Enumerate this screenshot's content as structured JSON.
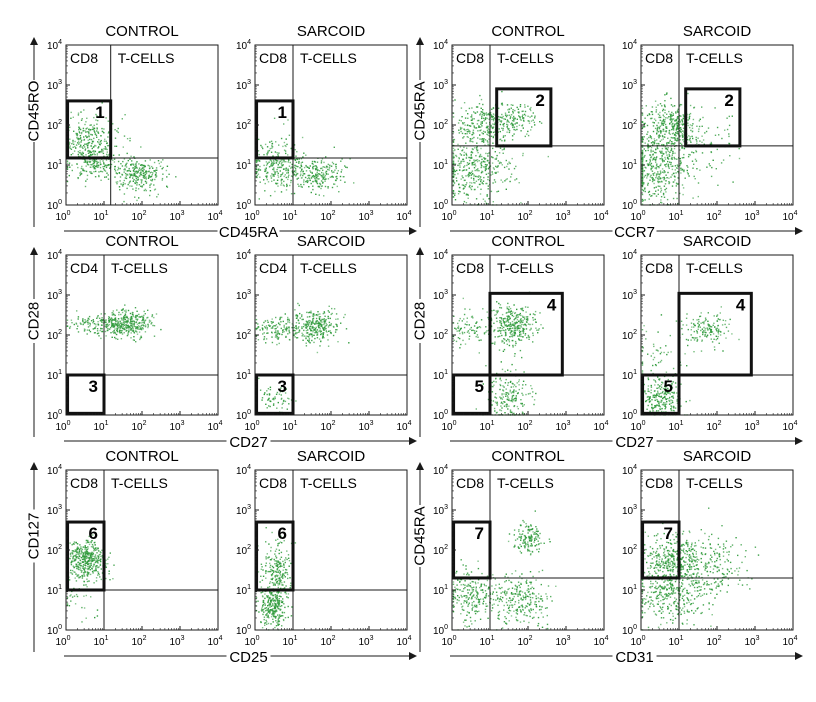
{
  "figure": {
    "chart_data": [
      {
        "type": "scatter",
        "panel_label": "1",
        "figure_row": 1,
        "x_axis_label": "CD45RA",
        "y_axis_label": "CD45RO",
        "scale": "log",
        "xlim": [
          1,
          10000
        ],
        "ylim": [
          1,
          10000
        ],
        "tick_labels": [
          "10",
          "10",
          "10",
          "10",
          "10"
        ],
        "tick_exponents": [
          "0",
          "1",
          "2",
          "3",
          "4"
        ],
        "panels": [
          {
            "title": "CONTROL",
            "subset_label": "CD8",
            "cells_label": "T-CELLS",
            "quadrant_divider": {
              "x": 15,
              "y": 15
            },
            "gate": {
              "label": "1",
              "x": [
                1.1,
                15
              ],
              "y": [
                15,
                400
              ]
            },
            "clusters": [
              {
                "x": 3,
                "y": 40,
                "spread_x": 0.45,
                "spread_y": 0.35,
                "count": 320
              },
              {
                "x": 5,
                "y": 12,
                "spread_x": 0.35,
                "spread_y": 0.2,
                "count": 160
              },
              {
                "x": 80,
                "y": 6,
                "spread_x": 0.35,
                "spread_y": 0.2,
                "count": 260
              }
            ]
          },
          {
            "title": "SARCOID",
            "subset_label": "CD8",
            "cells_label": "T-CELLS",
            "quadrant_divider": {
              "x": 10,
              "y": 15
            },
            "gate": {
              "label": "1",
              "x": [
                1.1,
                10
              ],
              "y": [
                15,
                400
              ]
            },
            "clusters": [
              {
                "x": 3,
                "y": 25,
                "spread_x": 0.35,
                "spread_y": 0.3,
                "count": 70
              },
              {
                "x": 4,
                "y": 8,
                "spread_x": 0.4,
                "spread_y": 0.25,
                "count": 200
              },
              {
                "x": 40,
                "y": 6,
                "spread_x": 0.35,
                "spread_y": 0.2,
                "count": 240
              }
            ]
          }
        ]
      },
      {
        "type": "scatter",
        "panel_label": "2",
        "figure_row": 1,
        "x_axis_label": "CCR7",
        "y_axis_label": "CD45RA",
        "scale": "log",
        "xlim": [
          1,
          10000
        ],
        "ylim": [
          1,
          10000
        ],
        "tick_labels": [
          "10",
          "10",
          "10",
          "10",
          "10"
        ],
        "tick_exponents": [
          "0",
          "1",
          "2",
          "3",
          "4"
        ],
        "panels": [
          {
            "title": "CONTROL",
            "subset_label": "CD8",
            "cells_label": "T-CELLS",
            "quadrant_divider": {
              "x": 10,
              "y": 30
            },
            "gate": {
              "label": "2",
              "x": [
                15,
                400
              ],
              "y": [
                30,
                800
              ]
            },
            "clusters": [
              {
                "x": 8,
                "y": 100,
                "spread_x": 0.4,
                "spread_y": 0.3,
                "count": 260
              },
              {
                "x": 40,
                "y": 150,
                "spread_x": 0.3,
                "spread_y": 0.2,
                "count": 120
              },
              {
                "x": 4,
                "y": 8,
                "spread_x": 0.5,
                "spread_y": 0.4,
                "count": 380
              }
            ]
          },
          {
            "title": "SARCOID",
            "subset_label": "CD8",
            "cells_label": "T-CELLS",
            "quadrant_divider": {
              "x": 10,
              "y": 30
            },
            "gate": {
              "label": "2",
              "x": [
                15,
                400
              ],
              "y": [
                30,
                800
              ]
            },
            "clusters": [
              {
                "x": 6,
                "y": 100,
                "spread_x": 0.35,
                "spread_y": 0.3,
                "count": 320
              },
              {
                "x": 3,
                "y": 10,
                "spread_x": 0.45,
                "spread_y": 0.45,
                "count": 460
              },
              {
                "x": 60,
                "y": 30,
                "spread_x": 0.4,
                "spread_y": 0.4,
                "count": 60
              }
            ]
          }
        ]
      },
      {
        "type": "scatter",
        "panel_label": "3",
        "figure_row": 2,
        "x_axis_label": "CD27",
        "y_axis_label": "CD28",
        "scale": "log",
        "xlim": [
          1,
          10000
        ],
        "ylim": [
          1,
          10000
        ],
        "tick_labels": [
          "10",
          "10",
          "10",
          "10",
          "10"
        ],
        "tick_exponents": [
          "0",
          "1",
          "2",
          "3",
          "4"
        ],
        "panels": [
          {
            "title": "CONTROL",
            "subset_label": "CD4",
            "cells_label": "T-CELLS",
            "quadrant_divider": {
              "x": 10,
              "y": 10
            },
            "gate": {
              "label": "3",
              "x": [
                1.1,
                10
              ],
              "y": [
                1.1,
                10
              ]
            },
            "clusters": [
              {
                "x": 40,
                "y": 200,
                "spread_x": 0.3,
                "spread_y": 0.18,
                "count": 340
              },
              {
                "x": 5,
                "y": 180,
                "spread_x": 0.35,
                "spread_y": 0.12,
                "count": 120
              }
            ]
          },
          {
            "title": "SARCOID",
            "subset_label": "CD4",
            "cells_label": "T-CELLS",
            "quadrant_divider": {
              "x": 10,
              "y": 10
            },
            "gate": {
              "label": "3",
              "x": [
                1.1,
                10
              ],
              "y": [
                1.1,
                10
              ]
            },
            "clusters": [
              {
                "x": 40,
                "y": 180,
                "spread_x": 0.3,
                "spread_y": 0.2,
                "count": 280
              },
              {
                "x": 4,
                "y": 150,
                "spread_x": 0.4,
                "spread_y": 0.15,
                "count": 150
              },
              {
                "x": 3,
                "y": 2.5,
                "spread_x": 0.2,
                "spread_y": 0.15,
                "count": 60
              }
            ]
          }
        ]
      },
      {
        "type": "scatter",
        "panel_label": "4 / 5",
        "figure_row": 2,
        "x_axis_label": "CD27",
        "y_axis_label": "CD28",
        "scale": "log",
        "xlim": [
          1,
          10000
        ],
        "ylim": [
          1,
          10000
        ],
        "tick_labels": [
          "10",
          "10",
          "10",
          "10",
          "10"
        ],
        "tick_exponents": [
          "0",
          "1",
          "2",
          "3",
          "4"
        ],
        "panels": [
          {
            "title": "CONTROL",
            "subset_label": "CD8",
            "cells_label": "T-CELLS",
            "quadrant_divider": {
              "x": 10,
              "y": 10
            },
            "gates": [
              {
                "label": "4",
                "x": [
                  10,
                  800
                ],
                "y": [
                  10,
                  1100
                ]
              },
              {
                "label": "5",
                "x": [
                  1.1,
                  10
                ],
                "y": [
                  1.1,
                  10
                ]
              }
            ],
            "clusters": [
              {
                "x": 40,
                "y": 180,
                "spread_x": 0.3,
                "spread_y": 0.25,
                "count": 320
              },
              {
                "x": 3,
                "y": 150,
                "spread_x": 0.35,
                "spread_y": 0.2,
                "count": 90
              },
              {
                "x": 30,
                "y": 3,
                "spread_x": 0.3,
                "spread_y": 0.35,
                "count": 200
              }
            ]
          },
          {
            "title": "SARCOID",
            "subset_label": "CD8",
            "cells_label": "T-CELLS",
            "quadrant_divider": {
              "x": 10,
              "y": 10
            },
            "gates": [
              {
                "label": "4",
                "x": [
                  10,
                  800
                ],
                "y": [
                  10,
                  1100
                ]
              },
              {
                "label": "5",
                "x": [
                  1.1,
                  10
                ],
                "y": [
                  1.1,
                  10
                ]
              }
            ],
            "clusters": [
              {
                "x": 50,
                "y": 150,
                "spread_x": 0.3,
                "spread_y": 0.2,
                "count": 150
              },
              {
                "x": 3,
                "y": 2.5,
                "spread_x": 0.28,
                "spread_y": 0.25,
                "count": 240
              },
              {
                "x": 3,
                "y": 30,
                "spread_x": 0.4,
                "spread_y": 0.4,
                "count": 60
              }
            ]
          }
        ]
      },
      {
        "type": "scatter",
        "panel_label": "6",
        "figure_row": 3,
        "x_axis_label": "CD25",
        "y_axis_label": "CD127",
        "scale": "log",
        "xlim": [
          1,
          10000
        ],
        "ylim": [
          1,
          10000
        ],
        "tick_labels": [
          "10",
          "10",
          "10",
          "10",
          "10"
        ],
        "tick_exponents": [
          "0",
          "1",
          "2",
          "3",
          "4"
        ],
        "panels": [
          {
            "title": "CONTROL",
            "subset_label": "CD8",
            "cells_label": "T-CELLS",
            "quadrant_divider": {
              "x": 10,
              "y": 10
            },
            "gate": {
              "label": "6",
              "x": [
                1.1,
                10
              ],
              "y": [
                10,
                500
              ]
            },
            "clusters": [
              {
                "x": 3.5,
                "y": 60,
                "spread_x": 0.25,
                "spread_y": 0.25,
                "count": 420
              },
              {
                "x": 3,
                "y": 5,
                "spread_x": 0.3,
                "spread_y": 0.3,
                "count": 30
              }
            ]
          },
          {
            "title": "SARCOID",
            "subset_label": "CD8",
            "cells_label": "T-CELLS",
            "quadrant_divider": {
              "x": 10,
              "y": 10
            },
            "gate": {
              "label": "6",
              "x": [
                1.1,
                10
              ],
              "y": [
                10,
                500
              ]
            },
            "clusters": [
              {
                "x": 3.5,
                "y": 30,
                "spread_x": 0.2,
                "spread_y": 0.35,
                "count": 220
              },
              {
                "x": 3,
                "y": 4,
                "spread_x": 0.18,
                "spread_y": 0.25,
                "count": 260
              }
            ]
          }
        ]
      },
      {
        "type": "scatter",
        "panel_label": "7",
        "figure_row": 3,
        "x_axis_label": "CD31",
        "y_axis_label": "CD45RA",
        "scale": "log",
        "xlim": [
          1,
          10000
        ],
        "ylim": [
          1,
          10000
        ],
        "tick_labels": [
          "10",
          "10",
          "10",
          "10",
          "10"
        ],
        "tick_exponents": [
          "0",
          "1",
          "2",
          "3",
          "4"
        ],
        "panels": [
          {
            "title": "CONTROL",
            "subset_label": "CD8",
            "cells_label": "T-CELLS",
            "quadrant_divider": {
              "x": 10,
              "y": 20
            },
            "gate": {
              "label": "7",
              "x": [
                1.1,
                10
              ],
              "y": [
                20,
                500
              ]
            },
            "clusters": [
              {
                "x": 100,
                "y": 200,
                "spread_x": 0.2,
                "spread_y": 0.18,
                "count": 140
              },
              {
                "x": 3,
                "y": 8,
                "spread_x": 0.3,
                "spread_y": 0.35,
                "count": 220
              },
              {
                "x": 60,
                "y": 6,
                "spread_x": 0.4,
                "spread_y": 0.3,
                "count": 260
              }
            ]
          },
          {
            "title": "SARCOID",
            "subset_label": "CD8",
            "cells_label": "T-CELLS",
            "quadrant_divider": {
              "x": 10,
              "y": 20
            },
            "gate": {
              "label": "7",
              "x": [
                1.1,
                10
              ],
              "y": [
                20,
                500
              ]
            },
            "clusters": [
              {
                "x": 8,
                "y": 60,
                "spread_x": 0.45,
                "spread_y": 0.3,
                "count": 420
              },
              {
                "x": 6,
                "y": 8,
                "spread_x": 0.45,
                "spread_y": 0.35,
                "count": 360
              },
              {
                "x": 100,
                "y": 40,
                "spread_x": 0.4,
                "spread_y": 0.35,
                "count": 140
              }
            ]
          }
        ]
      }
    ]
  },
  "colors": {
    "dots": "#2e9a3a",
    "axis": "#1a1a1a",
    "gate": "#111111"
  }
}
